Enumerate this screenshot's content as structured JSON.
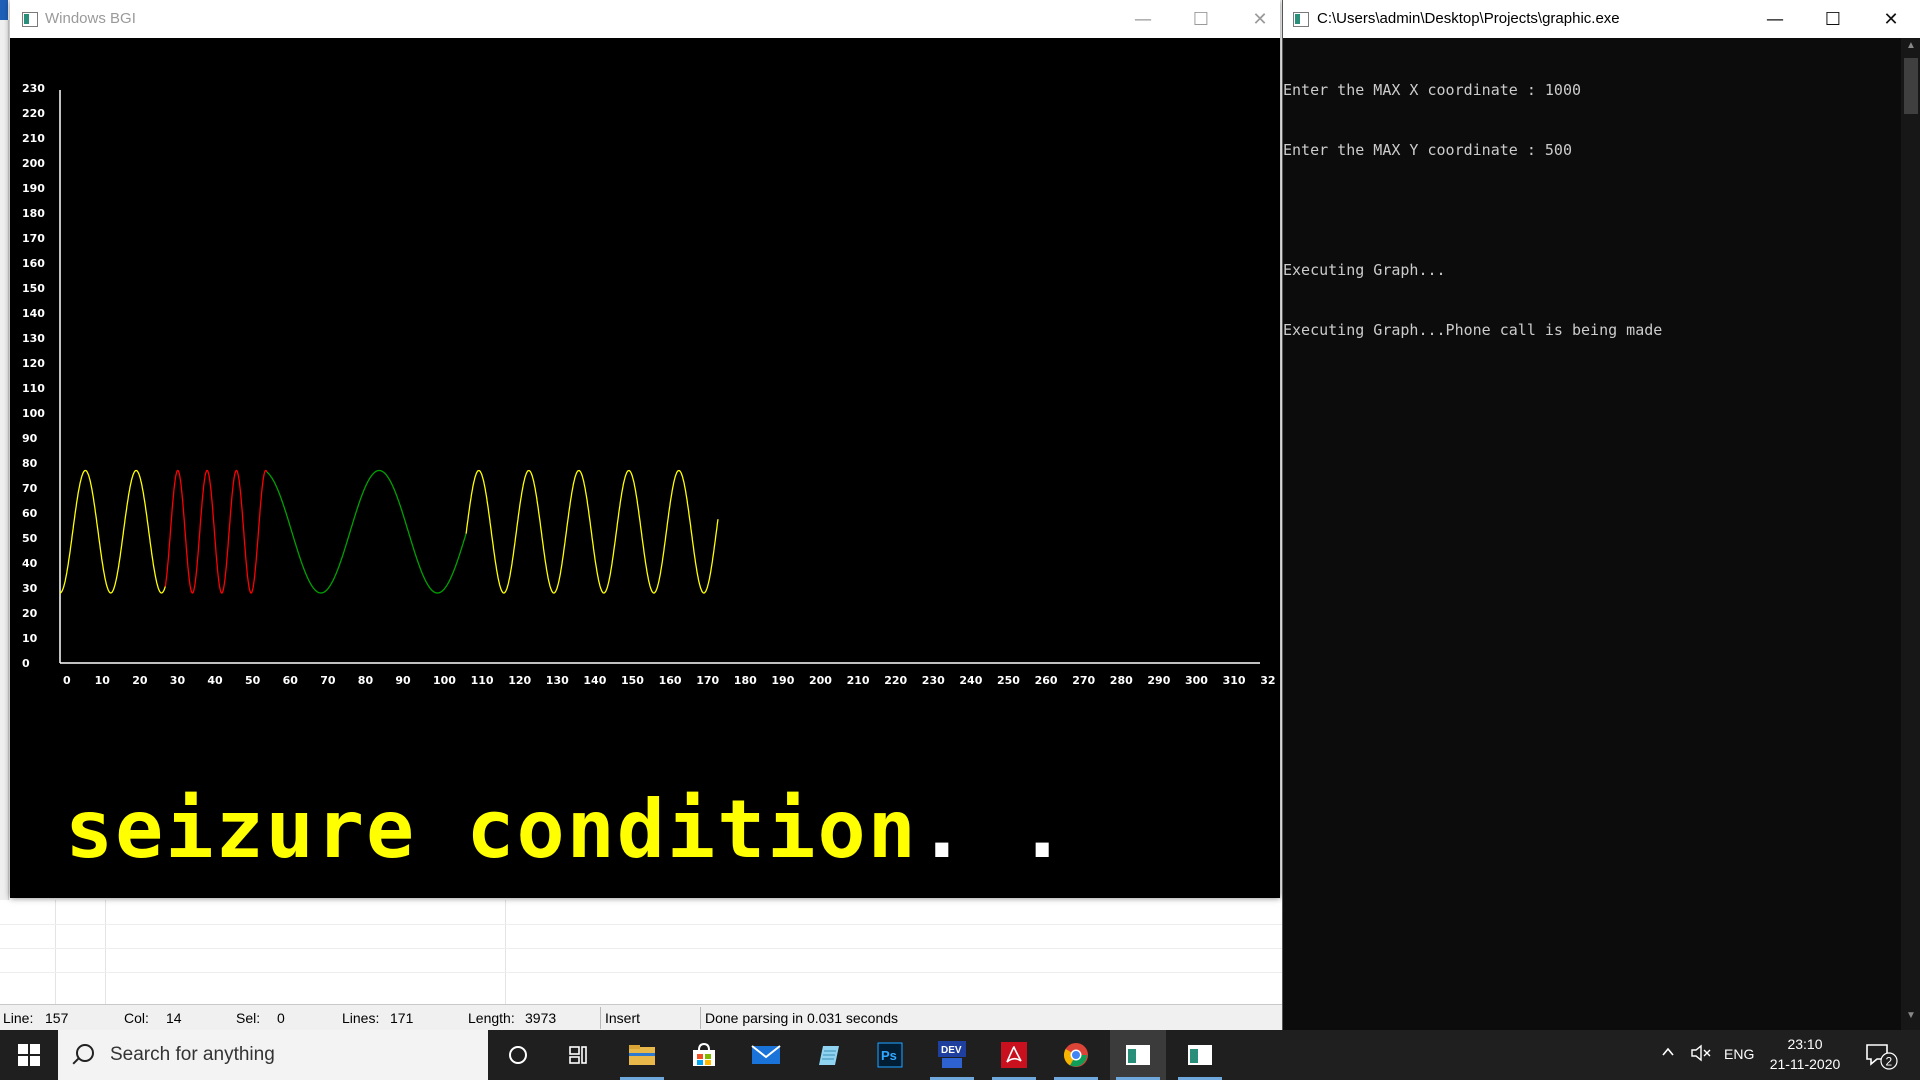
{
  "ide": {
    "status": {
      "line_label": "Line:",
      "line_value": "157",
      "col_label": "Col:",
      "col_value": "14",
      "sel_label": "Sel:",
      "sel_value": "0",
      "lines_label": "Lines:",
      "lines_value": "171",
      "length_label": "Length:",
      "length_value": "3973",
      "mode": "Insert",
      "message": "Done parsing in 0.031 seconds"
    }
  },
  "bgi_window": {
    "title": "Windows BGI",
    "minimize_glyph": "—",
    "maximize_glyph": "☐",
    "close_glyph": "✕",
    "message_text": "seizure condition",
    "message_dots": ". .",
    "colors": {
      "background": "#000000",
      "axis": "#ffffff",
      "yellow": "#ffff00",
      "red": "#ff0000",
      "green": "#00a000"
    }
  },
  "chart_data": {
    "type": "line",
    "title": "",
    "xlabel": "",
    "ylabel": "",
    "xlim": [
      0,
      320
    ],
    "ylim": [
      0,
      230
    ],
    "x_ticks": [
      "0",
      "10",
      "20",
      "30",
      "40",
      "50",
      "60",
      "70",
      "80",
      "90",
      "100",
      "110",
      "120",
      "130",
      "140",
      "150",
      "160",
      "170",
      "180",
      "190",
      "200",
      "210",
      "220",
      "230",
      "240",
      "250",
      "260",
      "270",
      "280",
      "290",
      "300",
      "310",
      "32"
    ],
    "y_ticks": [
      "0",
      "10",
      "20",
      "30",
      "40",
      "50",
      "60",
      "70",
      "80",
      "90",
      "100",
      "110",
      "120",
      "130",
      "140",
      "150",
      "160",
      "170",
      "180",
      "190",
      "200",
      "210",
      "220",
      "230"
    ],
    "grid": false,
    "wave": {
      "center": 52.5,
      "amplitude": 24.5
    },
    "segments": [
      {
        "color": "yellow",
        "x_start": 0,
        "x_end": 28,
        "period": 13.5
      },
      {
        "color": "red",
        "x_start": 28,
        "x_end": 55,
        "period": 7.8
      },
      {
        "color": "green",
        "x_start": 55,
        "x_end": 108,
        "period": 31
      },
      {
        "color": "yellow",
        "x_start": 108,
        "x_end": 175,
        "period": 13.3
      }
    ]
  },
  "console": {
    "title": "C:\\Users\\admin\\Desktop\\Projects\\graphic.exe",
    "minimize_glyph": "—",
    "maximize_glyph": "☐",
    "close_glyph": "✕",
    "lines": [
      "Enter the MAX X coordinate : 1000",
      "Enter the MAX Y coordinate : 500",
      "",
      "Executing Graph...",
      "Executing Graph...Phone call is being made"
    ]
  },
  "taskbar": {
    "search_placeholder": "Search for anything",
    "apps": [
      "cortana-icon",
      "task-view-icon",
      "file-explorer-icon",
      "store-icon",
      "mail-icon",
      "notepad-icon",
      "photoshop-icon",
      "devcpp-icon",
      "acrobat-icon",
      "chrome-icon",
      "bgi-window-icon",
      "console-window-icon"
    ],
    "photoshop_label": "Ps",
    "devcpp_label": "DEV",
    "language": "ENG",
    "time": "23:10",
    "date": "21-11-2020",
    "notification_count": "2"
  }
}
